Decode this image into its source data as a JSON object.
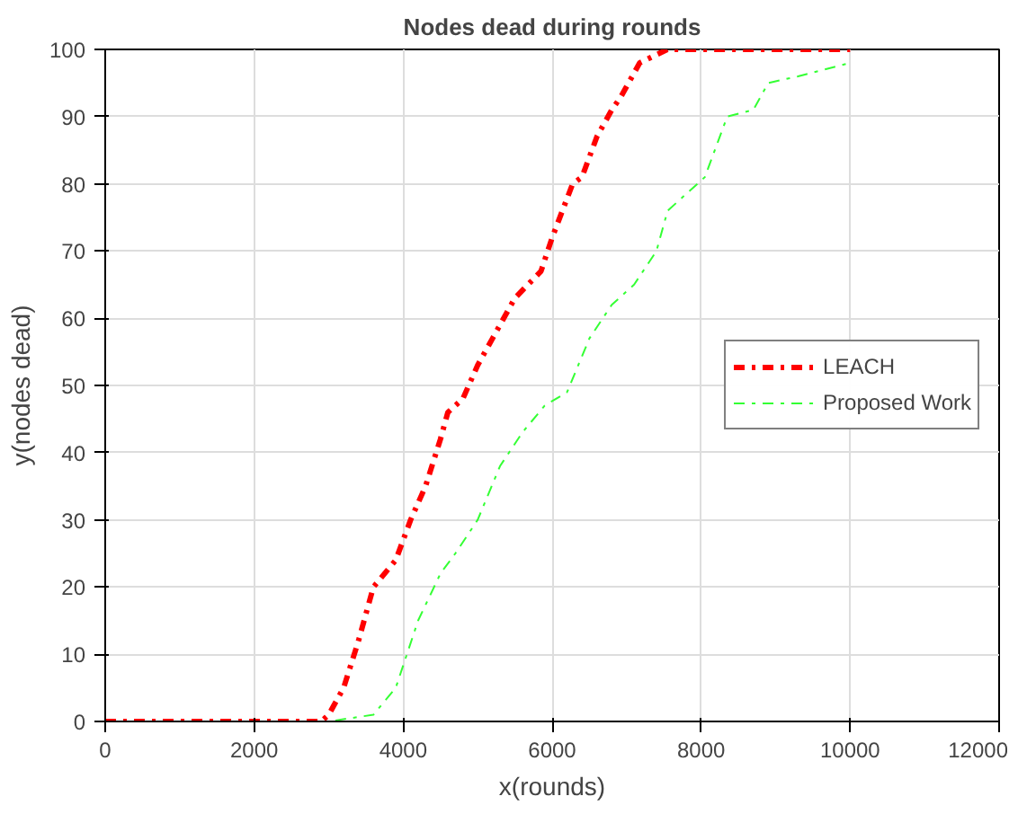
{
  "chart_data": {
    "type": "line",
    "title": "Nodes dead during rounds",
    "xlabel": "x(rounds)",
    "ylabel": "y(nodes dead)",
    "xlim": [
      0,
      12000
    ],
    "xticks": [
      0,
      2000,
      4000,
      6000,
      8000,
      10000,
      12000
    ],
    "ylim": [
      0,
      100
    ],
    "yticks": [
      0,
      10,
      20,
      30,
      40,
      50,
      60,
      70,
      80,
      90,
      100
    ],
    "grid": true,
    "legend": "right",
    "series": [
      {
        "name": "LEACH",
        "color": "#ff0000",
        "line_style": "dashdot",
        "x": [
          0,
          2900,
          3000,
          3200,
          3400,
          3600,
          3900,
          4100,
          4300,
          4500,
          4600,
          4800,
          5000,
          5200,
          5500,
          5850,
          6000,
          6275,
          6400,
          6600,
          6800,
          6925,
          7175,
          7550,
          10000
        ],
        "values": [
          0,
          0,
          1,
          5,
          12,
          20,
          24,
          30,
          35,
          42,
          46,
          48,
          53,
          57,
          63,
          67,
          72,
          80,
          81,
          87,
          91,
          93,
          98,
          100,
          100
        ]
      },
      {
        "name": "Proposed Work",
        "color": "#33ff33",
        "line_style": "dashdot",
        "x": [
          0,
          3000,
          3600,
          3900,
          4200,
          4500,
          4700,
          5000,
          5300,
          5600,
          5900,
          6200,
          6500,
          6800,
          7100,
          7400,
          7550,
          8050,
          8350,
          8700,
          8900,
          9300,
          10000
        ],
        "values": [
          0,
          0,
          1,
          5,
          15,
          22,
          25,
          30,
          38,
          43,
          47,
          49,
          57,
          62,
          65,
          70,
          76,
          81,
          90,
          91,
          95,
          96,
          98
        ]
      }
    ]
  }
}
